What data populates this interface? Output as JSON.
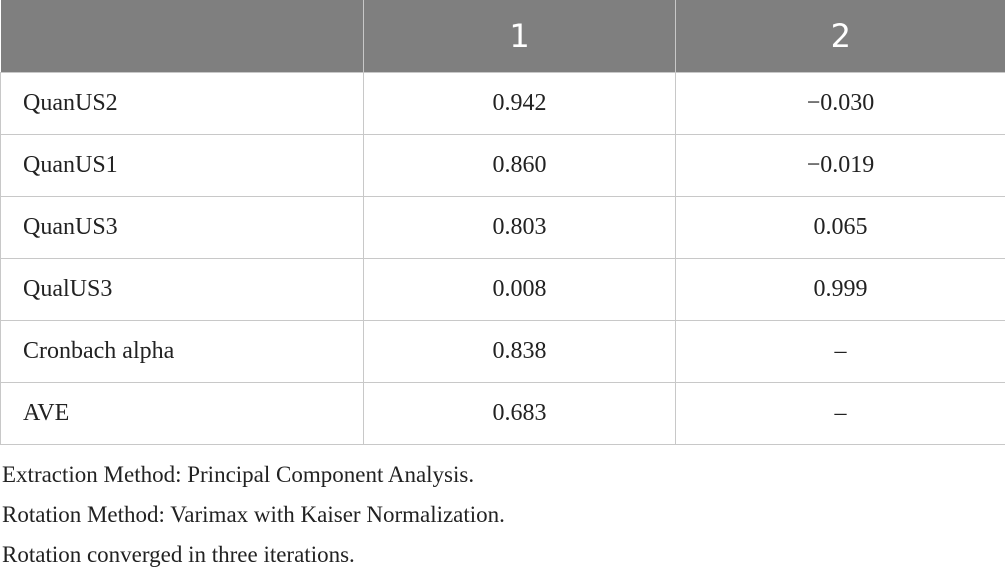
{
  "table": {
    "columns": [
      "1",
      "2"
    ],
    "rows": [
      [
        "QuanUS2",
        "0.942",
        "−0.030"
      ],
      [
        "QuanUS1",
        "0.860",
        "−0.019"
      ],
      [
        "QuanUS3",
        "0.803",
        "0.065"
      ],
      [
        "QualUS3",
        "0.008",
        "0.999"
      ],
      [
        "Cronbach alpha",
        "0.838",
        "–"
      ],
      [
        "AVE",
        "0.683",
        "–"
      ]
    ]
  },
  "footnotes": [
    "Extraction Method: Principal Component Analysis.",
    "Rotation Method: Varimax with Kaiser Normalization.",
    "Rotation converged in three iterations."
  ]
}
